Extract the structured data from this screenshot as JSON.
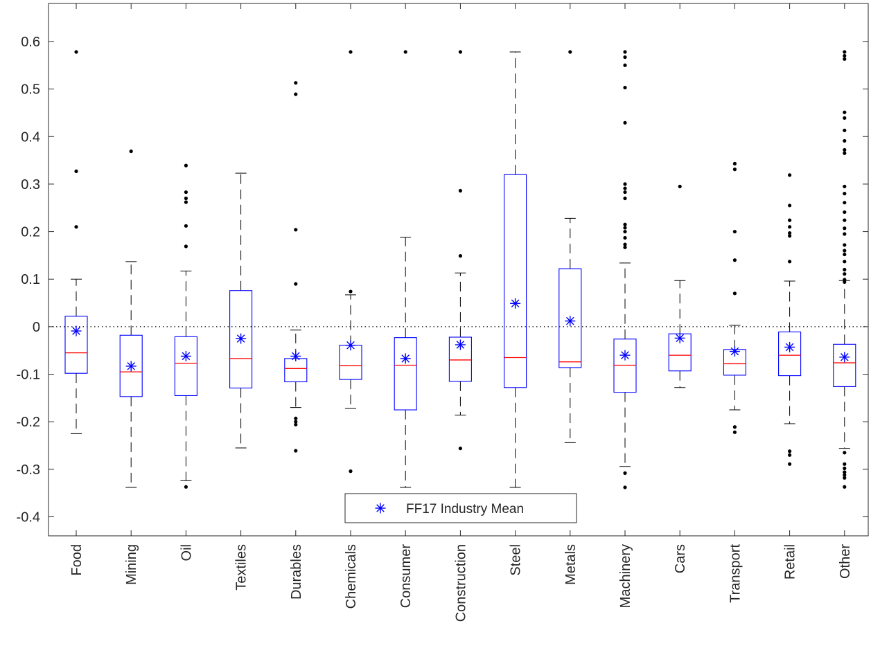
{
  "chart_data": {
    "type": "box",
    "title": "",
    "xlabel": "",
    "ylabel": "",
    "ylim": [
      -0.44,
      0.68
    ],
    "yticks": [
      -0.4,
      -0.3,
      -0.2,
      -0.1,
      0,
      0.1,
      0.2,
      0.3,
      0.4,
      0.5,
      0.6
    ],
    "ytick_labels": [
      "-0.4",
      "-0.3",
      "-0.2",
      "-0.1",
      "0",
      "0.1",
      "0.2",
      "0.3",
      "0.4",
      "0.5",
      "0.6"
    ],
    "reference_line": 0,
    "grid": false,
    "legend": {
      "position": "bottom-center",
      "entries": [
        "FF17 Industry Mean"
      ]
    },
    "colors": {
      "box": "#0000ff",
      "median": "#ff0000",
      "whisker": "#000000",
      "outlier": "#000000",
      "mean": "#0000ff"
    },
    "categories": [
      "Food",
      "Mining",
      "Oil",
      "Textiles",
      "Durables",
      "Chemicals",
      "Consumer",
      "Construction",
      "Steel",
      "Metals",
      "Machinery",
      "Cars",
      "Transport",
      "Retail",
      "Other"
    ],
    "boxes": [
      {
        "q1": -0.098,
        "median": -0.055,
        "q3": 0.022,
        "lower_whisker": -0.225,
        "upper_whisker": 0.1,
        "mean": -0.009,
        "outliers": [
          0.578,
          0.327,
          0.21
        ]
      },
      {
        "q1": -0.147,
        "median": -0.095,
        "q3": -0.018,
        "lower_whisker": -0.338,
        "upper_whisker": 0.137,
        "mean": -0.083,
        "outliers": [
          0.369
        ]
      },
      {
        "q1": -0.145,
        "median": -0.077,
        "q3": -0.021,
        "lower_whisker": -0.324,
        "upper_whisker": 0.117,
        "mean": -0.062,
        "outliers": [
          0.339,
          0.283,
          0.27,
          0.262,
          0.212,
          0.169,
          -0.337
        ]
      },
      {
        "q1": -0.129,
        "median": -0.067,
        "q3": 0.076,
        "lower_whisker": -0.255,
        "upper_whisker": 0.323,
        "mean": -0.025,
        "outliers": []
      },
      {
        "q1": -0.116,
        "median": -0.088,
        "q3": -0.067,
        "lower_whisker": -0.17,
        "upper_whisker": -0.007,
        "mean": -0.062,
        "outliers": [
          0.513,
          0.489,
          0.204,
          0.09,
          -0.193,
          -0.2,
          -0.206,
          -0.261
        ]
      },
      {
        "q1": -0.111,
        "median": -0.082,
        "q3": -0.039,
        "lower_whisker": -0.172,
        "upper_whisker": 0.067,
        "mean": -0.039,
        "outliers": [
          0.578,
          0.074,
          -0.304
        ]
      },
      {
        "q1": -0.175,
        "median": -0.081,
        "q3": -0.023,
        "lower_whisker": -0.338,
        "upper_whisker": 0.188,
        "mean": -0.067,
        "outliers": [
          0.578
        ]
      },
      {
        "q1": -0.115,
        "median": -0.07,
        "q3": -0.022,
        "lower_whisker": -0.186,
        "upper_whisker": 0.113,
        "mean": -0.038,
        "outliers": [
          0.578,
          0.286,
          0.149,
          -0.256
        ]
      },
      {
        "q1": -0.128,
        "median": -0.065,
        "q3": 0.32,
        "lower_whisker": -0.338,
        "upper_whisker": 0.578,
        "mean": 0.049,
        "outliers": []
      },
      {
        "q1": -0.086,
        "median": -0.074,
        "q3": 0.122,
        "lower_whisker": -0.244,
        "upper_whisker": 0.228,
        "mean": 0.012,
        "outliers": [
          0.578
        ]
      },
      {
        "q1": -0.138,
        "median": -0.081,
        "q3": -0.026,
        "lower_whisker": -0.294,
        "upper_whisker": 0.134,
        "mean": -0.06,
        "outliers": [
          0.578,
          0.567,
          0.55,
          0.503,
          0.429,
          0.3,
          0.291,
          0.283,
          0.27,
          0.215,
          0.208,
          0.2,
          0.187,
          0.173,
          0.167,
          -0.308,
          -0.338
        ]
      },
      {
        "q1": -0.093,
        "median": -0.06,
        "q3": -0.015,
        "lower_whisker": -0.128,
        "upper_whisker": 0.097,
        "mean": -0.024,
        "outliers": [
          0.295
        ]
      },
      {
        "q1": -0.102,
        "median": -0.078,
        "q3": -0.048,
        "lower_whisker": -0.175,
        "upper_whisker": 0.003,
        "mean": -0.052,
        "outliers": [
          0.343,
          0.331,
          0.2,
          0.14,
          0.07,
          -0.211,
          -0.222
        ]
      },
      {
        "q1": -0.103,
        "median": -0.06,
        "q3": -0.011,
        "lower_whisker": -0.204,
        "upper_whisker": 0.096,
        "mean": -0.043,
        "outliers": [
          0.319,
          0.255,
          0.224,
          0.21,
          0.197,
          0.191,
          0.137,
          -0.262,
          -0.27,
          -0.289
        ]
      },
      {
        "q1": -0.126,
        "median": -0.076,
        "q3": -0.037,
        "lower_whisker": -0.256,
        "upper_whisker": 0.097,
        "mean": -0.064,
        "outliers": [
          0.578,
          0.57,
          0.563,
          0.451,
          0.439,
          0.413,
          0.391,
          0.372,
          0.365,
          0.295,
          0.28,
          0.261,
          0.241,
          0.224,
          0.207,
          0.195,
          0.172,
          0.16,
          0.152,
          0.137,
          0.12,
          0.111,
          0.099,
          0.094,
          -0.265,
          -0.289,
          -0.298,
          -0.306,
          -0.312,
          -0.318,
          -0.337
        ]
      }
    ]
  }
}
